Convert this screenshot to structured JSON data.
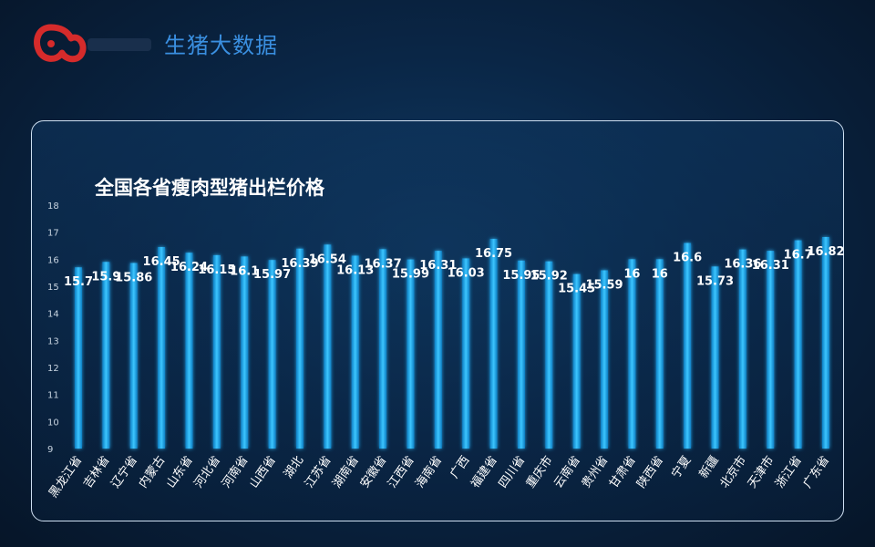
{
  "header": {
    "title": "生猪大数据",
    "logo_icon": "pig-logo-icon"
  },
  "colors": {
    "bar": "#1aa3e6",
    "bar_glow": "#45c9ff",
    "logo": "#d52b2b",
    "title_accent": "#3a8fe0"
  },
  "chart_data": {
    "type": "bar",
    "title": "全国各省瘦肉型猪出栏价格",
    "xlabel": "",
    "ylabel": "",
    "ylim": [
      9,
      18
    ],
    "yticks": [
      "9",
      "10",
      "11",
      "12",
      "13",
      "14",
      "15",
      "16",
      "17",
      "18"
    ],
    "grid": false,
    "categories": [
      "黑龙江省",
      "吉林省",
      "辽宁省",
      "内蒙古",
      "山东省",
      "河北省",
      "河南省",
      "山西省",
      "湖北",
      "江苏省",
      "湖南省",
      "安徽省",
      "江西省",
      "海南省",
      "广西",
      "福建省",
      "四川省",
      "重庆市",
      "云南省",
      "贵州省",
      "甘肃省",
      "陕西省",
      "宁夏",
      "新疆",
      "北京市",
      "天津市",
      "浙江省",
      "广东省"
    ],
    "values": [
      15.7,
      15.9,
      15.86,
      16.45,
      16.24,
      16.15,
      16.1,
      15.97,
      16.39,
      16.54,
      16.13,
      16.37,
      15.99,
      16.31,
      16.03,
      16.75,
      15.95,
      15.92,
      15.45,
      15.59,
      16,
      16,
      16.6,
      15.73,
      16.36,
      16.31,
      16.7,
      16.82
    ],
    "labels": [
      "15.7",
      "15.9",
      "15.86",
      "16.45",
      "16.24",
      "16.15",
      "16.1",
      "15.97",
      "16.39",
      "16.54",
      "16.13",
      "16.37",
      "15.99",
      "16.31",
      "16.03",
      "16.75",
      "15.95",
      "15.92",
      "15.45",
      "15.59",
      "16",
      "16",
      "16.6",
      "15.73",
      "16.36",
      "16.31",
      "16.7",
      "16.82"
    ]
  }
}
